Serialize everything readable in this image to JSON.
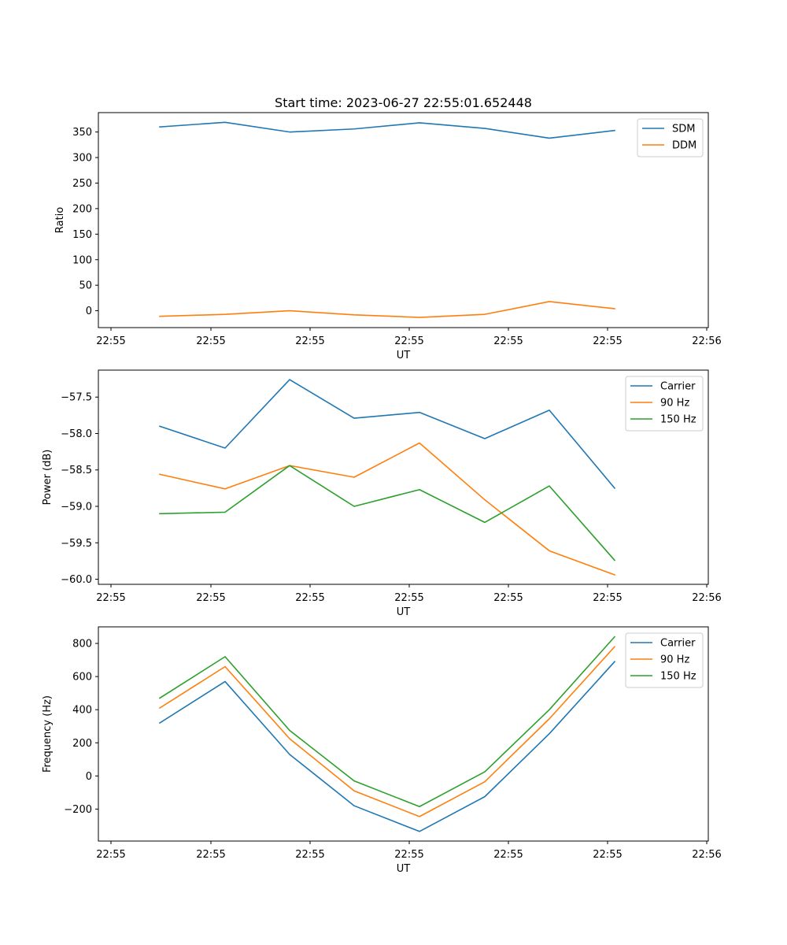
{
  "figure": {
    "title": "Start time: 2023-06-27 22:55:01.652448"
  },
  "colors": {
    "blue": "#1f77b4",
    "orange": "#ff7f0e",
    "green": "#2ca02c"
  },
  "chart_data": [
    {
      "type": "line",
      "title": "Start time: 2023-06-27 22:55:01.652448",
      "xlabel": "UT",
      "ylabel": "Ratio",
      "x_ticklabels": [
        "22:55",
        "22:55",
        "22:55",
        "22:55",
        "22:55",
        "22:55",
        "22:55"
      ],
      "x_last_ticklabel": "22:56",
      "ylim": [
        -33,
        388
      ],
      "yticks": [
        0,
        50,
        100,
        150,
        200,
        250,
        300,
        350
      ],
      "legend": "top-right",
      "series": [
        {
          "name": "SDM",
          "color": "#1f77b4",
          "values": [
            360,
            369,
            350,
            356,
            368,
            357,
            338,
            353
          ]
        },
        {
          "name": "DDM",
          "color": "#ff7f0e",
          "values": [
            -11,
            -7,
            0,
            -8,
            -13,
            -7,
            18,
            4
          ]
        }
      ]
    },
    {
      "type": "line",
      "xlabel": "UT",
      "ylabel": "Power (dB)",
      "x_ticklabels": [
        "22:55",
        "22:55",
        "22:55",
        "22:55",
        "22:55",
        "22:55",
        "22:55"
      ],
      "x_last_ticklabel": "22:56",
      "ylim": [
        -60.07,
        -57.13
      ],
      "yticks": [
        -60.0,
        -59.5,
        -59.0,
        -58.5,
        -58.0,
        -57.5
      ],
      "ytick_labels": [
        "−60.0",
        "−59.5",
        "−59.0",
        "−58.5",
        "−58.0",
        "−57.5"
      ],
      "legend": "top-right",
      "series": [
        {
          "name": "Carrier",
          "color": "#1f77b4",
          "values": [
            -57.9,
            -58.2,
            -57.26,
            -57.79,
            -57.71,
            -58.07,
            -57.68,
            -58.75
          ]
        },
        {
          "name": "90 Hz",
          "color": "#ff7f0e",
          "values": [
            -58.56,
            -58.76,
            -58.44,
            -58.6,
            -58.13,
            -58.91,
            -59.61,
            -59.94
          ]
        },
        {
          "name": "150 Hz",
          "color": "#2ca02c",
          "values": [
            -59.1,
            -59.08,
            -58.44,
            -59.0,
            -58.77,
            -59.22,
            -58.72,
            -59.74
          ]
        }
      ]
    },
    {
      "type": "line",
      "xlabel": "UT",
      "ylabel": "Frequency (Hz)",
      "x_ticklabels": [
        "22:55",
        "22:55",
        "22:55",
        "22:55",
        "22:55",
        "22:55",
        "22:55"
      ],
      "x_last_ticklabel": "22:56",
      "ylim": [
        -393,
        900
      ],
      "yticks": [
        -200,
        0,
        200,
        400,
        600,
        800
      ],
      "ytick_labels": [
        "−200",
        "0",
        "200",
        "400",
        "600",
        "800"
      ],
      "legend": "top-right",
      "series": [
        {
          "name": "Carrier",
          "color": "#1f77b4",
          "values": [
            320,
            570,
            130,
            -180,
            -335,
            -125,
            255,
            690
          ]
        },
        {
          "name": "90 Hz",
          "color": "#ff7f0e",
          "values": [
            410,
            660,
            225,
            -90,
            -245,
            -35,
            345,
            780
          ]
        },
        {
          "name": "150 Hz",
          "color": "#2ca02c",
          "values": [
            470,
            720,
            275,
            -30,
            -185,
            25,
            400,
            840
          ]
        }
      ]
    }
  ]
}
